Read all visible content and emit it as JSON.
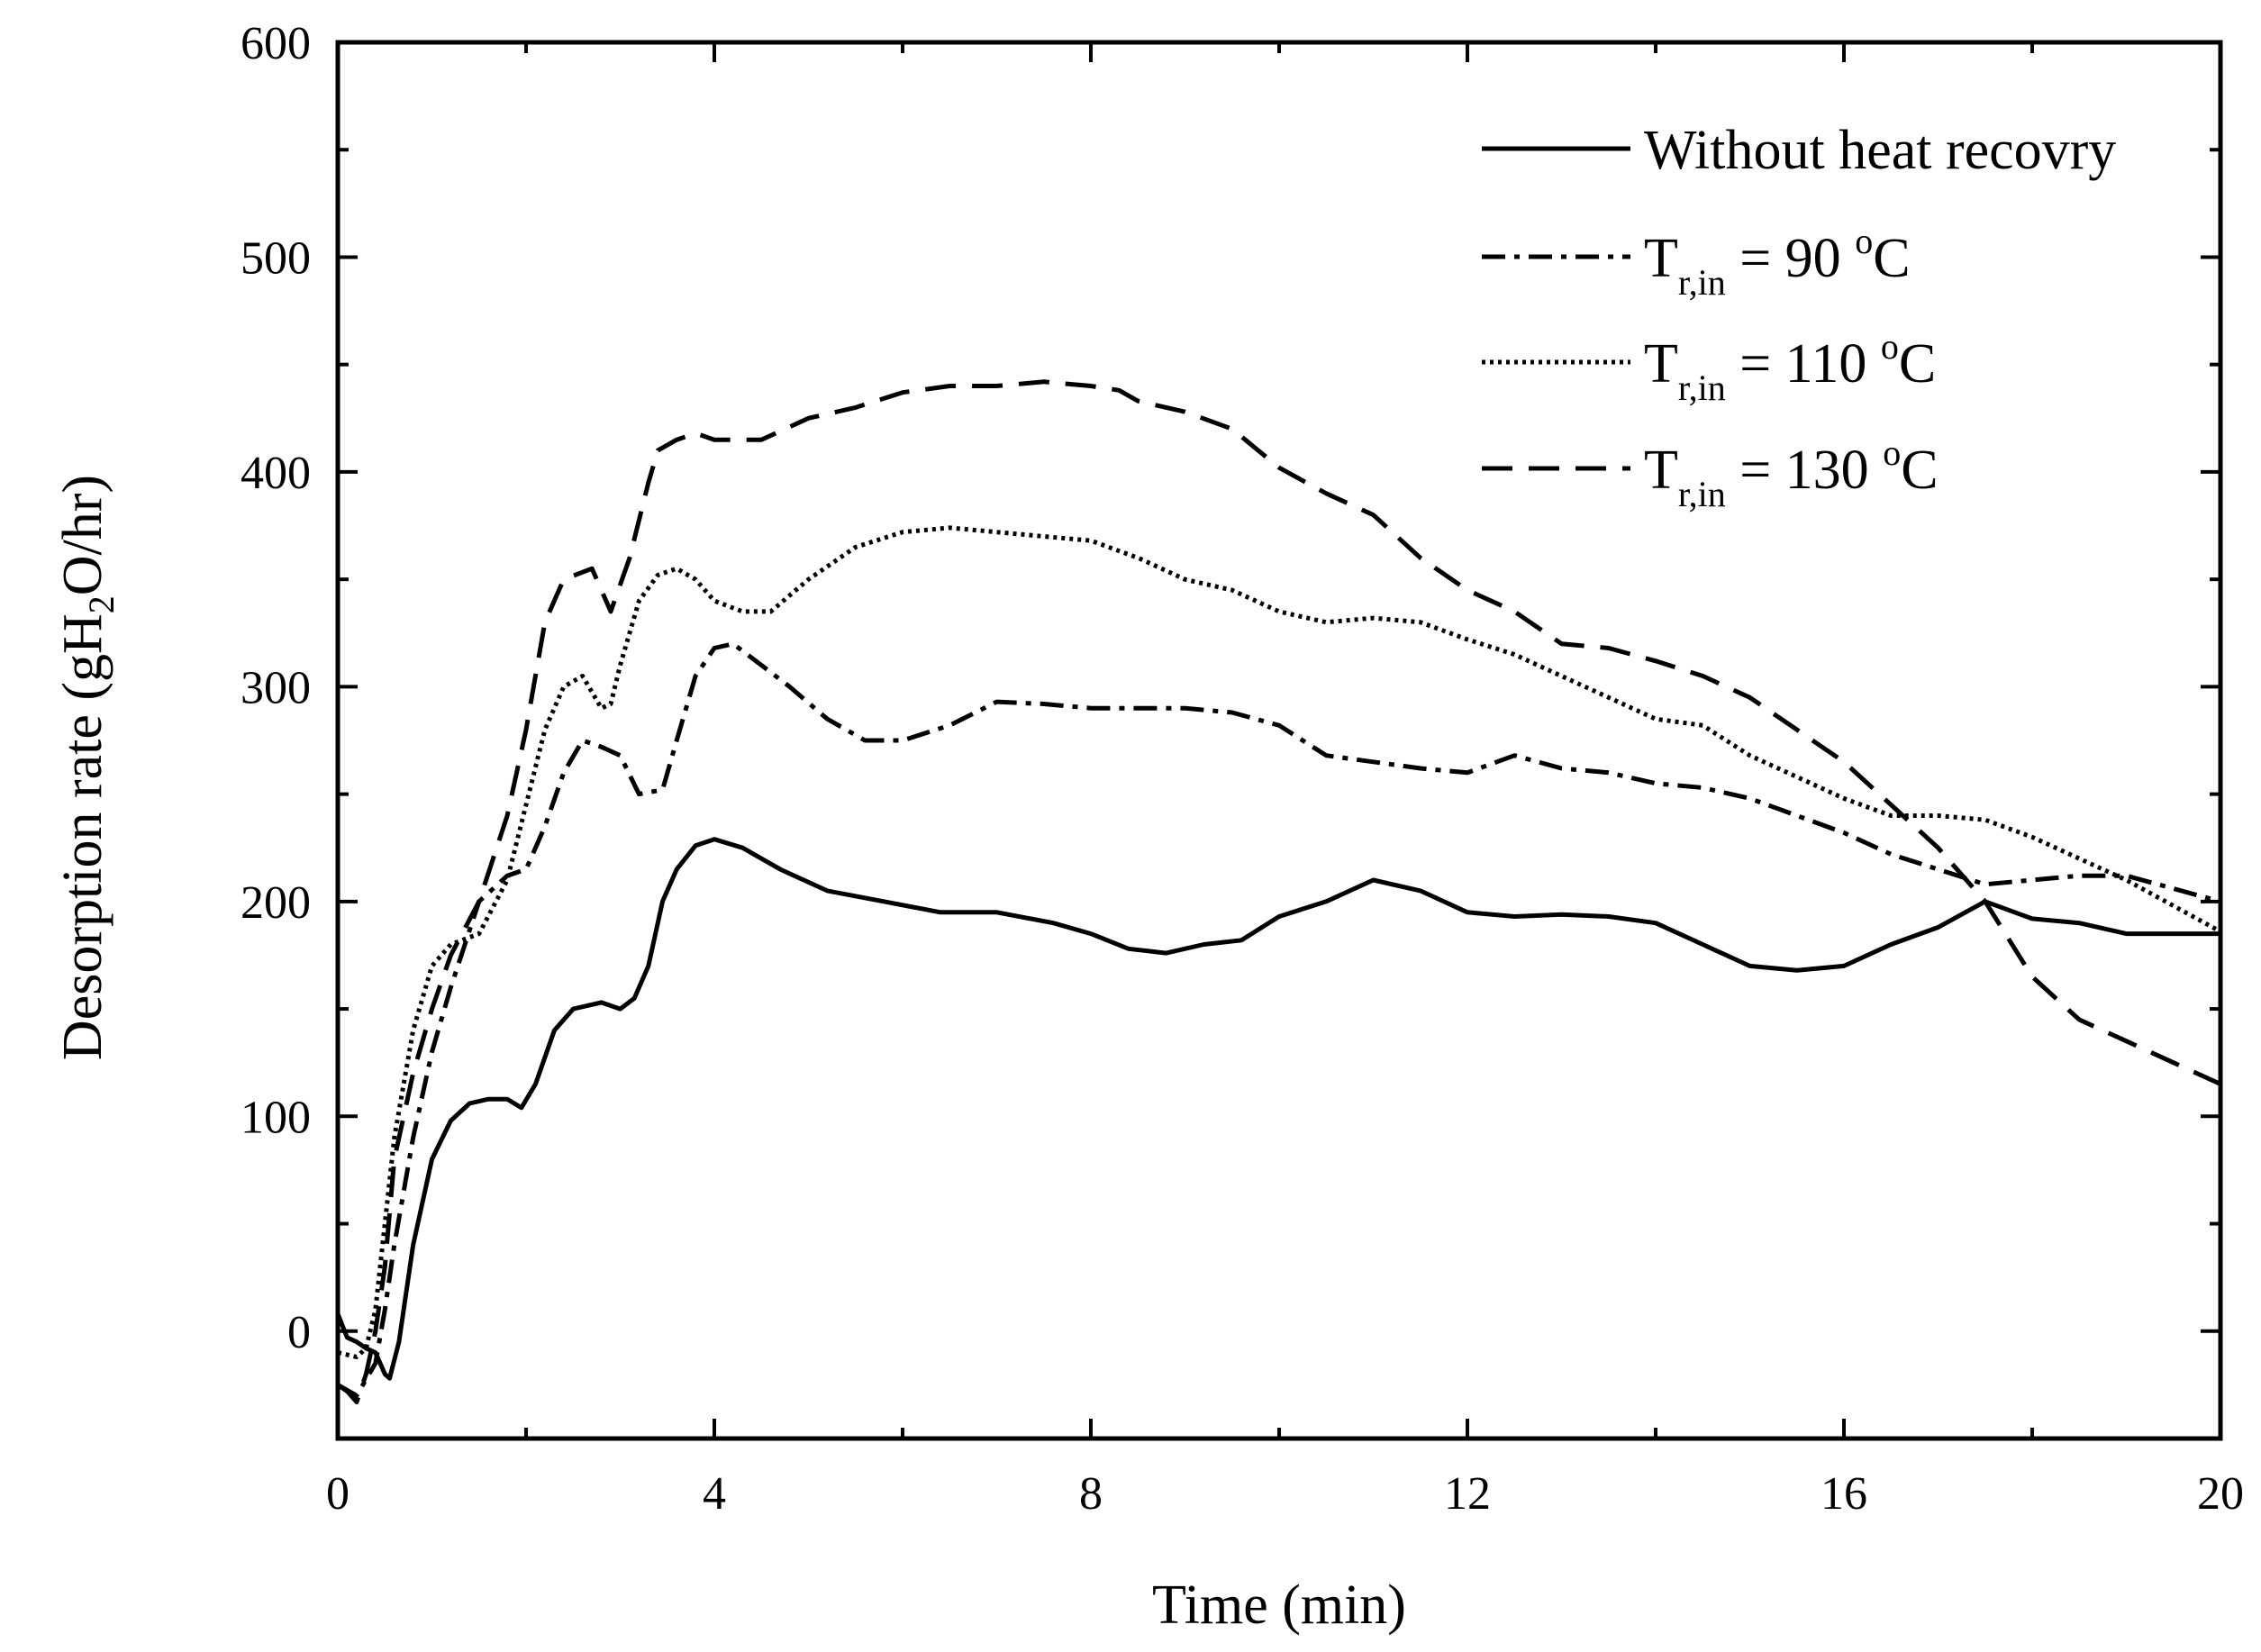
{
  "chart_data": {
    "type": "line",
    "xlabel": "Time (min)",
    "ylabel": {
      "prefix": "Desorption rate (gH",
      "sub": "2",
      "suffix": "O/hr)"
    },
    "xlim": [
      0,
      20
    ],
    "ylim": [
      -50,
      600
    ],
    "xticks": [
      0,
      4,
      8,
      12,
      16,
      20
    ],
    "yticks": [
      0,
      100,
      200,
      300,
      400,
      500,
      600
    ],
    "legend_position": "top-right",
    "series": [
      {
        "name": "Without heat recovry",
        "legend": {
          "main": "Without heat recovry"
        },
        "dash": "solid",
        "x": [
          0,
          0.1,
          0.2,
          0.3,
          0.4,
          0.5,
          0.55,
          0.65,
          0.8,
          1.0,
          1.2,
          1.4,
          1.6,
          1.8,
          1.95,
          2.1,
          2.3,
          2.5,
          2.8,
          3.0,
          3.15,
          3.3,
          3.45,
          3.6,
          3.8,
          4.0,
          4.3,
          4.7,
          5.2,
          5.8,
          6.4,
          7.0,
          7.6,
          8.0,
          8.4,
          8.8,
          9.2,
          9.6,
          10.0,
          10.5,
          11.0,
          11.5,
          12.0,
          12.5,
          13.0,
          13.5,
          14.0,
          14.5,
          15.0,
          15.5,
          16.0,
          16.5,
          17.0,
          17.5,
          18.0,
          18.5,
          19.0,
          19.5,
          20.0
        ],
        "y": [
          8,
          -3,
          -5,
          -8,
          -10,
          -20,
          -22,
          -5,
          40,
          80,
          98,
          106,
          108,
          108,
          104,
          115,
          140,
          150,
          153,
          150,
          155,
          170,
          200,
          215,
          226,
          229,
          225,
          215,
          205,
          200,
          195,
          195,
          190,
          185,
          178,
          176,
          180,
          182,
          193,
          200,
          210,
          205,
          195,
          193,
          194,
          193,
          190,
          180,
          170,
          168,
          170,
          180,
          188,
          200,
          192,
          190,
          185,
          185,
          185
        ]
      },
      {
        "name": "T_r,in = 90 °C",
        "legend": {
          "main": "T",
          "sub": "r,in",
          "rest": " = 90 ",
          "sup": "o",
          "unit": "C"
        },
        "dash": "dashdot",
        "x": [
          0,
          0.2,
          0.4,
          0.5,
          0.6,
          0.8,
          1.0,
          1.2,
          1.5,
          1.8,
          2.0,
          2.2,
          2.4,
          2.6,
          2.8,
          3.0,
          3.2,
          3.45,
          3.6,
          3.8,
          4.0,
          4.2,
          4.5,
          4.8,
          5.2,
          5.6,
          6.0,
          6.5,
          7.0,
          7.5,
          8.0,
          8.5,
          9.0,
          9.5,
          10.0,
          10.5,
          11.0,
          11.5,
          12.0,
          12.5,
          13.0,
          13.5,
          14.0,
          14.5,
          15.0,
          15.5,
          16.0,
          16.5,
          17.0,
          17.5,
          18.0,
          18.5,
          19.0,
          19.5,
          20.0
        ],
        "y": [
          -25,
          -30,
          -15,
          10,
          40,
          90,
          130,
          160,
          200,
          212,
          215,
          235,
          260,
          275,
          272,
          268,
          250,
          252,
          275,
          305,
          318,
          320,
          310,
          300,
          285,
          275,
          275,
          282,
          293,
          292,
          290,
          290,
          290,
          288,
          282,
          268,
          265,
          262,
          260,
          268,
          262,
          260,
          255,
          253,
          248,
          240,
          232,
          222,
          215,
          208,
          210,
          212,
          212,
          206,
          200
        ]
      },
      {
        "name": "T_r,in = 110 °C",
        "legend": {
          "main": "T",
          "sub": "r,in",
          "rest": " = 110 ",
          "sup": "o",
          "unit": "C"
        },
        "dash": "dotted",
        "x": [
          0,
          0.2,
          0.3,
          0.4,
          0.5,
          0.6,
          0.8,
          1.0,
          1.2,
          1.5,
          1.8,
          2.0,
          2.2,
          2.4,
          2.6,
          2.8,
          2.9,
          3.0,
          3.2,
          3.4,
          3.6,
          3.8,
          4.0,
          4.3,
          4.6,
          5.0,
          5.5,
          6.0,
          6.5,
          7.0,
          7.5,
          8.0,
          8.5,
          9.0,
          9.5,
          10.0,
          10.5,
          11.0,
          11.5,
          12.0,
          12.5,
          13.0,
          13.5,
          14.0,
          14.5,
          15.0,
          15.5,
          16.0,
          16.5,
          17.0,
          17.5,
          18.0,
          18.5,
          19.0,
          19.5,
          20.0
        ],
        "y": [
          -10,
          -12,
          -8,
          10,
          50,
          90,
          140,
          170,
          180,
          185,
          210,
          245,
          280,
          300,
          305,
          290,
          292,
          310,
          340,
          352,
          355,
          350,
          340,
          335,
          335,
          350,
          365,
          372,
          374,
          372,
          370,
          368,
          360,
          350,
          345,
          335,
          330,
          332,
          330,
          322,
          315,
          305,
          295,
          285,
          282,
          268,
          258,
          248,
          240,
          240,
          238,
          230,
          220,
          210,
          198,
          186
        ]
      },
      {
        "name": "T_r,in = 130 °C",
        "legend": {
          "main": "T",
          "sub": "r,in",
          "rest": " = 130 ",
          "sup": "o",
          "unit": "C"
        },
        "dash": "dashed",
        "x": [
          0,
          0.1,
          0.2,
          0.3,
          0.4,
          0.5,
          0.6,
          0.8,
          1.0,
          1.2,
          1.5,
          1.8,
          2.0,
          2.2,
          2.4,
          2.7,
          2.9,
          3.1,
          3.3,
          3.4,
          3.6,
          3.8,
          4.0,
          4.5,
          5.0,
          5.5,
          6.0,
          6.5,
          7.0,
          7.5,
          8.0,
          8.3,
          8.5,
          9.0,
          9.5,
          10.0,
          10.5,
          11.0,
          11.5,
          12.0,
          12.5,
          13.0,
          13.5,
          14.0,
          14.5,
          15.0,
          15.5,
          16.0,
          16.5,
          17.0,
          17.5,
          18.0,
          18.5,
          19.0,
          19.5,
          20.0
        ],
        "y": [
          -25,
          -28,
          -33,
          -20,
          0,
          30,
          80,
          120,
          150,
          175,
          200,
          240,
          280,
          330,
          350,
          355,
          335,
          360,
          395,
          410,
          415,
          418,
          415,
          415,
          425,
          430,
          437,
          440,
          440,
          442,
          440,
          438,
          433,
          428,
          420,
          402,
          390,
          380,
          360,
          345,
          335,
          320,
          318,
          312,
          305,
          295,
          280,
          265,
          245,
          225,
          200,
          165,
          145,
          135,
          125,
          115
        ]
      }
    ]
  }
}
